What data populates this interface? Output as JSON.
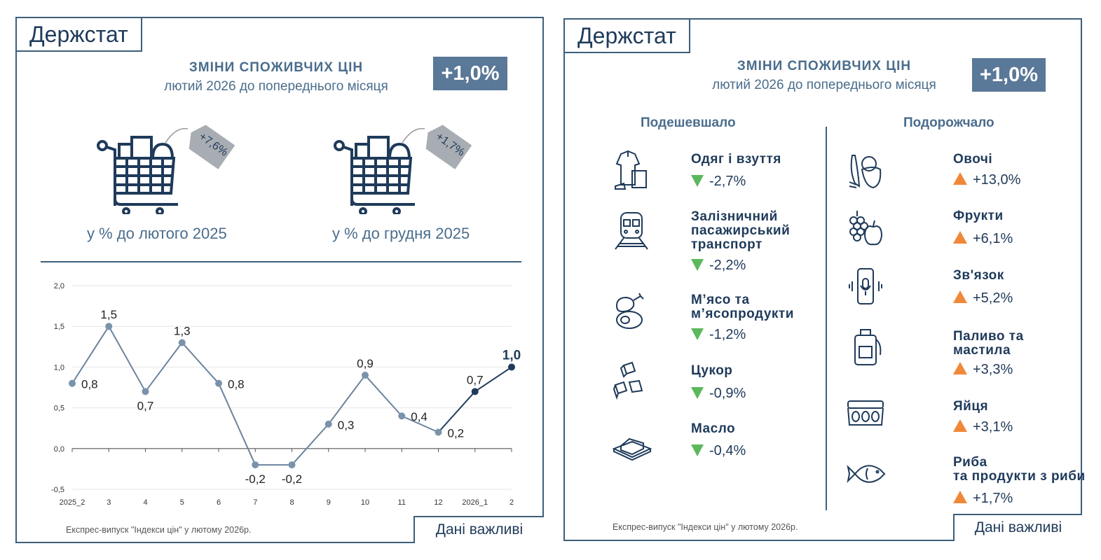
{
  "logo": "Держстат",
  "header": {
    "title": "ЗМІНИ СПОЖИВЧИХ ЦІН",
    "subtitle": "лютий 2026 до попереднього місяця",
    "badge": "+1,0%"
  },
  "left": {
    "carts": [
      {
        "tag": "+7,6%",
        "caption": "у % до лютого 2025"
      },
      {
        "tag": "+1,7%",
        "caption": "у % до грудня 2025"
      }
    ],
    "source": "Експрес-випуск \"Індекси цін\" у лютому 2026р.",
    "important": "Дані важливі"
  },
  "chart_data": {
    "type": "line",
    "categories": [
      "2025_2",
      "3",
      "4",
      "5",
      "6",
      "7",
      "8",
      "9",
      "10",
      "11",
      "12",
      "2026_1",
      "2"
    ],
    "values": [
      0.8,
      1.5,
      0.7,
      1.3,
      0.8,
      -0.2,
      -0.2,
      0.3,
      0.9,
      0.4,
      0.2,
      0.7,
      1.0
    ],
    "data_labels": [
      "0,8",
      "1,5",
      "0,7",
      "1,3",
      "0,8",
      "-0,2",
      "-0,2",
      "0,3",
      "0,9",
      "0,4",
      "0,2",
      "0,7",
      "1,0"
    ],
    "yticks": [
      "2,0",
      "1,5",
      "1,0",
      "0,5",
      "0,0",
      "-0,5"
    ],
    "ylim": [
      -0.5,
      2.0
    ],
    "grid": true,
    "colors": {
      "history": "#7a93ab",
      "recent": "#1f3a5a"
    }
  },
  "right": {
    "cheaper_title": "Подешевшало",
    "pricier_title": "Подорожчало",
    "cheaper": [
      {
        "name": "Одяг і взуття",
        "value": "-2,7%",
        "icon": "clothes-icon"
      },
      {
        "name": "Залізничний\nпасажирський\nтранспорт",
        "value": "-2,2%",
        "icon": "train-icon"
      },
      {
        "name": "М’ясо та\nм’ясопродукти",
        "value": "-1,2%",
        "icon": "meat-icon"
      },
      {
        "name": "Цукор",
        "value": "-0,9%",
        "icon": "sugar-cubes-icon"
      },
      {
        "name": "Масло",
        "value": "-0,4%",
        "icon": "butter-icon"
      }
    ],
    "pricier": [
      {
        "name": "Овочі",
        "value": "+13,0%",
        "icon": "vegetables-icon"
      },
      {
        "name": "Фрукти",
        "value": "+6,1%",
        "icon": "fruits-icon"
      },
      {
        "name": "Зв'язок",
        "value": "+5,2%",
        "icon": "phone-icon"
      },
      {
        "name": "Паливо та\nмастила",
        "value": "+3,3%",
        "icon": "fuel-canister-icon"
      },
      {
        "name": "Яйця",
        "value": "+3,1%",
        "icon": "eggs-icon"
      },
      {
        "name": "Риба\nта продукти з риби",
        "value": "+1,7%",
        "icon": "fish-icon"
      }
    ],
    "colors": {
      "down": "#5cb85c",
      "up": "#f0883a"
    },
    "source": "Експрес-випуск \"Індекси цін\" у лютому 2026р.",
    "important": "Дані важливі"
  }
}
